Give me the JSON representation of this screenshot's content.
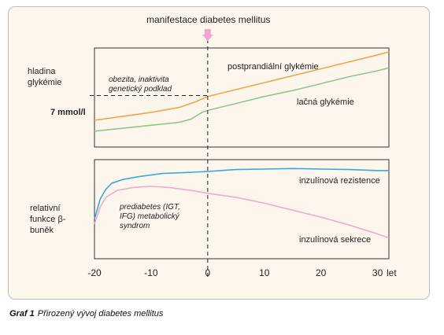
{
  "chart_data": {
    "type": "line",
    "x_unit": "let",
    "x_ticks": [
      -20,
      -10,
      0,
      10,
      20,
      30
    ],
    "xlim": [
      -20,
      32
    ],
    "top_annotation": "manifestace diabetes mellitus",
    "event_x": 0,
    "panels": [
      {
        "ylabel": "hladina glykémie",
        "threshold_label": "7 mmol/l",
        "threshold_y": 0.52,
        "ylim": [
          0,
          1
        ],
        "annotation": "obezita, inaktivita genetický podklad",
        "series": [
          {
            "name": "postprandiální glykémie",
            "color": "#f5a34a",
            "x": [
              -20,
              -15,
              -10,
              -5,
              -2,
              0,
              5,
              10,
              15,
              20,
              25,
              30,
              32
            ],
            "y": [
              0.27,
              0.31,
              0.35,
              0.4,
              0.46,
              0.51,
              0.58,
              0.65,
              0.72,
              0.79,
              0.86,
              0.93,
              0.96
            ]
          },
          {
            "name": "lačná glykémie",
            "color": "#8cc98c",
            "x": [
              -20,
              -15,
              -10,
              -5,
              -3,
              -1,
              0,
              5,
              10,
              15,
              20,
              25,
              30,
              32
            ],
            "y": [
              0.16,
              0.19,
              0.22,
              0.25,
              0.28,
              0.35,
              0.37,
              0.44,
              0.51,
              0.57,
              0.64,
              0.71,
              0.77,
              0.8
            ]
          }
        ]
      },
      {
        "ylabel": "relativní funkce β-buněk",
        "ylim": [
          0,
          1
        ],
        "annotation": "prediabetes (IGT, IFG) metabolický syndrom",
        "series": [
          {
            "name": "inzulínová rezistence",
            "color": "#3aa8e0",
            "x": [
              -20,
              -19,
              -18,
              -17,
              -15,
              -12,
              -8,
              -4,
              0,
              5,
              10,
              15,
              20,
              25,
              30,
              32
            ],
            "y": [
              0.4,
              0.6,
              0.7,
              0.76,
              0.8,
              0.83,
              0.86,
              0.87,
              0.88,
              0.9,
              0.905,
              0.91,
              0.905,
              0.9,
              0.89,
              0.89
            ]
          },
          {
            "name": "inzulínová sekrece",
            "color": "#f2aacb",
            "x": [
              -20,
              -19,
              -18,
              -16,
              -13,
              -10,
              -7,
              -3,
              0,
              5,
              10,
              15,
              20,
              25,
              30,
              32
            ],
            "y": [
              0.35,
              0.52,
              0.62,
              0.69,
              0.72,
              0.73,
              0.72,
              0.69,
              0.66,
              0.62,
              0.56,
              0.49,
              0.42,
              0.34,
              0.25,
              0.21
            ]
          }
        ]
      }
    ]
  },
  "caption": {
    "number": "Graf 1",
    "text": "Přirozený vývoj diabetes mellitus"
  }
}
